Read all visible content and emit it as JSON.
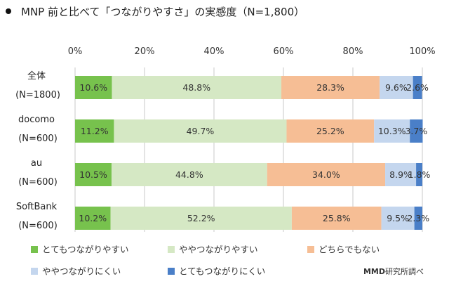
{
  "chart_data": {
    "type": "bar",
    "orientation": "horizontal",
    "stacked": true,
    "percent": true,
    "title": "MNP 前と比べて「つながりやすさ」の実感度（N=1,800）",
    "xlim": [
      0,
      100
    ],
    "x_ticks": [
      "0%",
      "20%",
      "40%",
      "60%",
      "80%",
      "100%"
    ],
    "categories": [
      {
        "name": "全体",
        "n": "(N=1800)"
      },
      {
        "name": "docomo",
        "n": "(N=600)"
      },
      {
        "name": "au",
        "n": "(N=600)"
      },
      {
        "name": "SoftBank",
        "n": "(N=600)"
      }
    ],
    "series": [
      {
        "name": "とてもつながりやすい",
        "color": "#77c24d",
        "values": [
          10.6,
          11.2,
          10.5,
          10.2
        ],
        "labels": [
          "10.6%",
          "11.2%",
          "10.5%",
          "10.2%"
        ]
      },
      {
        "name": "ややつながりやすい",
        "color": "#d5e8c4",
        "values": [
          48.8,
          49.7,
          44.8,
          52.2
        ],
        "labels": [
          "48.8%",
          "49.7%",
          "44.8%",
          "52.2%"
        ]
      },
      {
        "name": "どちらでもない",
        "color": "#f6be95",
        "values": [
          28.3,
          25.2,
          34.0,
          25.8
        ],
        "labels": [
          "28.3%",
          "25.2%",
          "34.0%",
          "25.8%"
        ]
      },
      {
        "name": "ややつながりにくい",
        "color": "#c4d6ee",
        "values": [
          9.6,
          10.3,
          8.9,
          9.5
        ],
        "labels": [
          "9.6%",
          "10.3%",
          "8.9%",
          "9.5%"
        ]
      },
      {
        "name": "とてもつながりにくい",
        "color": "#4a7fc8",
        "values": [
          2.6,
          3.7,
          1.8,
          2.3
        ],
        "labels": [
          "2.6%",
          "3.7%",
          "1.8%",
          "2.3%"
        ]
      }
    ],
    "legend_position": "bottom"
  },
  "credit": {
    "brand": "MMD",
    "suffix": "研究所調べ"
  }
}
